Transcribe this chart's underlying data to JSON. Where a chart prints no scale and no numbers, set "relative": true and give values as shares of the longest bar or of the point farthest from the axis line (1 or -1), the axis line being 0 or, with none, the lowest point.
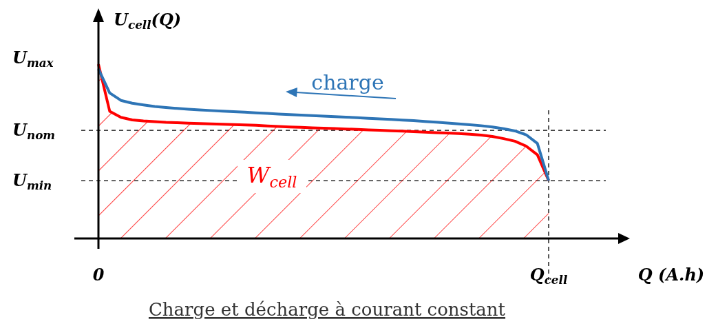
{
  "chart_data": {
    "type": "line",
    "relative": true,
    "xlabel": "Q (A.h)",
    "ylabel": "U$_{cell}$(Q)",
    "title": "Charge et décharge à courant constant",
    "categories": [
      "0",
      null,
      null,
      null,
      null,
      null,
      null,
      null,
      null,
      null,
      null,
      null,
      null,
      null,
      null,
      null,
      null,
      null,
      null,
      null,
      null,
      null,
      null,
      null,
      null,
      null,
      null,
      null,
      null,
      null,
      null,
      null,
      null,
      null,
      null,
      null,
      null,
      null,
      null,
      null,
      "Q$_{cell}$"
    ],
    "series": [
      {
        "color": "#2e75b6",
        "values": [
          0.972,
          0.835,
          0.792,
          0.776,
          0.766,
          0.757,
          0.751,
          0.746,
          0.741,
          0.737,
          0.734,
          0.731,
          0.728,
          0.725,
          0.721,
          0.718,
          0.714,
          0.711,
          0.708,
          0.705,
          0.702,
          0.699,
          0.696,
          0.693,
          0.689,
          0.686,
          0.683,
          0.679,
          0.676,
          0.671,
          0.667,
          0.662,
          0.657,
          0.652,
          0.647,
          0.64,
          0.63,
          0.617,
          0.595,
          0.545,
          0.332
        ]
      },
      {
        "type": "area",
        "color": "#ff0000",
        "values": [
          1.0,
          0.73,
          0.695,
          0.68,
          0.674,
          0.67,
          0.666,
          0.664,
          0.661,
          0.659,
          0.657,
          0.655,
          0.653,
          0.651,
          0.649,
          0.646,
          0.643,
          0.64,
          0.638,
          0.635,
          0.633,
          0.631,
          0.628,
          0.626,
          0.623,
          0.621,
          0.618,
          0.616,
          0.613,
          0.61,
          0.607,
          0.605,
          0.602,
          0.598,
          0.593,
          0.585,
          0.573,
          0.558,
          0.53,
          0.48,
          0.332
        ]
      }
    ],
    "ref_lines": [
      {
        "axis": "y",
        "value": 0.62,
        "label": "U$_{nom}$",
        "line_style": "dashed",
        "color": "#000000"
      },
      {
        "axis": "y",
        "value": 0.332,
        "label": "U$_{min}$",
        "line_style": "dashed",
        "color": "#000000"
      },
      {
        "axis": "x",
        "value": "Q$_{cell}$",
        "label": null,
        "line_style": "dashed",
        "color": "#000000"
      }
    ],
    "annotations": [
      "U$_{max}$",
      "charge",
      "W$_{cell}$"
    ]
  }
}
